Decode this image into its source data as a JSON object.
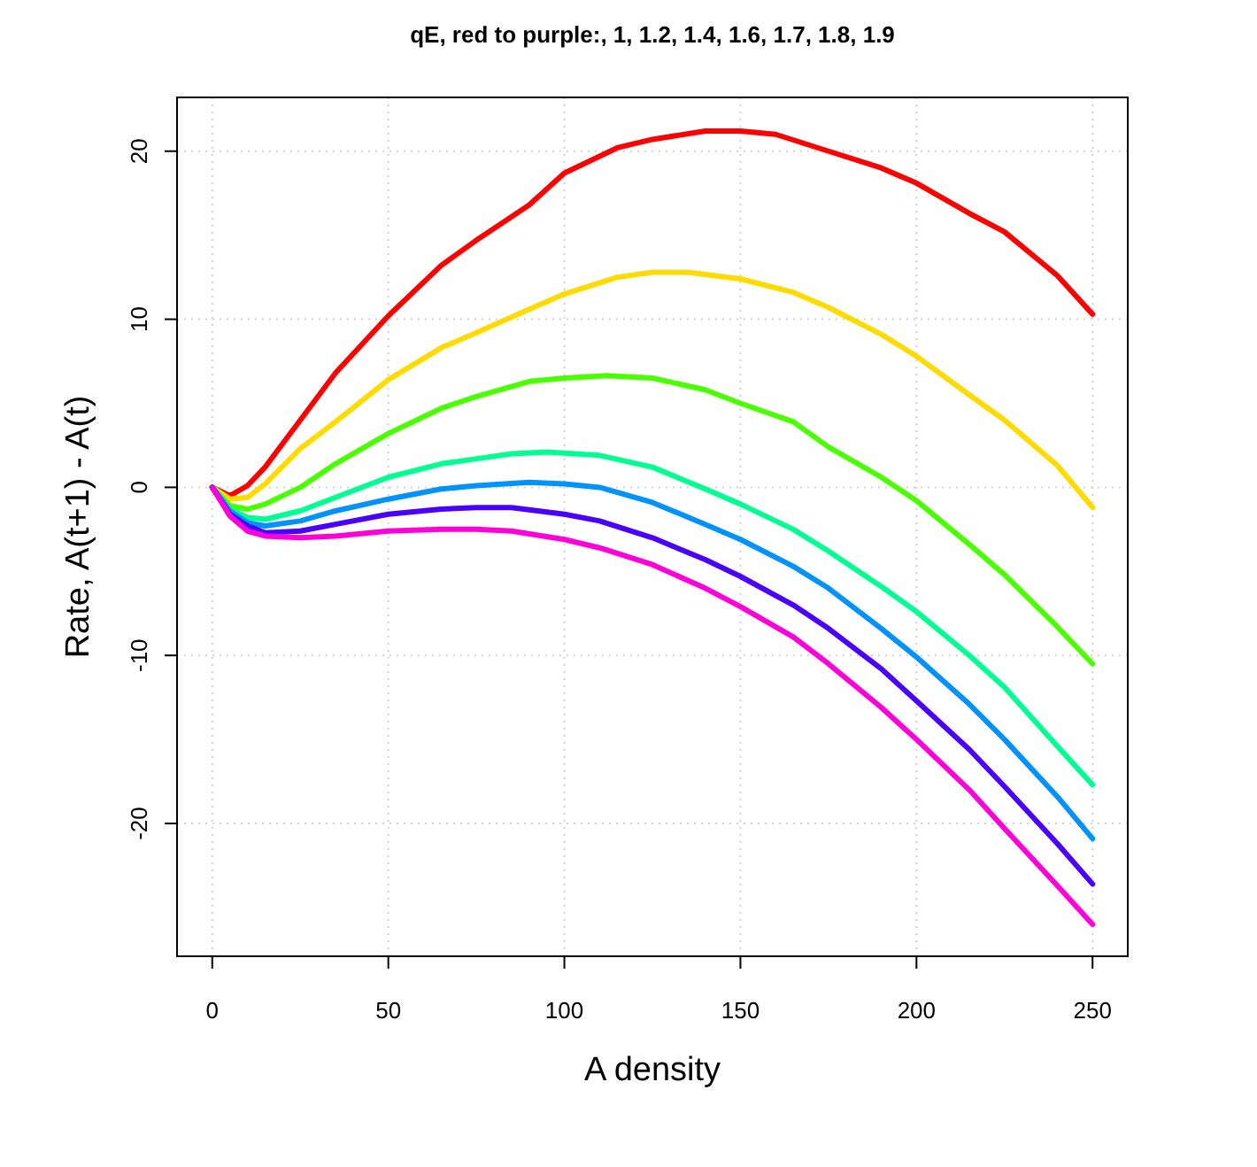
{
  "chart_data": {
    "type": "line",
    "title": "qE, red to purple:,  1,  1.2,  1.4,  1.6,  1.7,  1.8,  1.9",
    "xlabel": "A density",
    "ylabel": "Rate, A(t+1) - A(t)",
    "xlim": [
      -10,
      260
    ],
    "ylim": [
      -27.9,
      23.2
    ],
    "xticks": [
      0,
      50,
      100,
      150,
      200,
      250
    ],
    "yticks": [
      -20,
      -10,
      0,
      10,
      20
    ],
    "grid": true,
    "line_style": "solid",
    "marker": "none",
    "series": [
      {
        "color": "#ff0000",
        "x": [
          0,
          5,
          10,
          15,
          25,
          35,
          50,
          65,
          75,
          90,
          100,
          115,
          125,
          140,
          150,
          160,
          175,
          190,
          200,
          215,
          225,
          240,
          250
        ],
        "values": [
          0,
          -0.5,
          0.1,
          1.2,
          4.0,
          6.8,
          10.2,
          13.2,
          14.7,
          16.8,
          18.7,
          20.2,
          20.7,
          21.2,
          21.2,
          21.0,
          20.0,
          19.0,
          18.1,
          16.3,
          15.2,
          12.6,
          10.3
        ]
      },
      {
        "color": "#ffdb00",
        "x": [
          0,
          5,
          10,
          15,
          25,
          35,
          50,
          65,
          75,
          90,
          100,
          115,
          125,
          135,
          150,
          165,
          175,
          190,
          200,
          215,
          225,
          240,
          250
        ],
        "values": [
          0,
          -0.7,
          -0.6,
          0.2,
          2.3,
          3.9,
          6.4,
          8.3,
          9.2,
          10.6,
          11.5,
          12.5,
          12.8,
          12.8,
          12.4,
          11.6,
          10.7,
          9.1,
          7.8,
          5.5,
          4.0,
          1.3,
          -1.2
        ]
      },
      {
        "color": "#49ff00",
        "x": [
          0,
          5,
          10,
          15,
          25,
          35,
          50,
          65,
          75,
          90,
          100,
          112,
          125,
          140,
          150,
          165,
          175,
          190,
          200,
          215,
          225,
          240,
          250
        ],
        "values": [
          0,
          -1.1,
          -1.3,
          -1.0,
          0,
          1.4,
          3.2,
          4.7,
          5.4,
          6.3,
          6.5,
          6.65,
          6.5,
          5.8,
          5.0,
          3.9,
          2.4,
          0.6,
          -0.8,
          -3.4,
          -5.2,
          -8.3,
          -10.5
        ]
      },
      {
        "color": "#00ff92",
        "x": [
          0,
          5,
          10,
          15,
          25,
          35,
          50,
          65,
          75,
          85,
          95,
          110,
          125,
          140,
          150,
          165,
          175,
          190,
          200,
          215,
          225,
          240,
          250
        ],
        "values": [
          0,
          -1.3,
          -1.8,
          -1.9,
          -1.4,
          -0.6,
          0.6,
          1.4,
          1.7,
          2.0,
          2.1,
          1.9,
          1.2,
          -0.1,
          -1.0,
          -2.5,
          -3.8,
          -5.9,
          -7.4,
          -10.0,
          -11.9,
          -15.4,
          -17.7
        ]
      },
      {
        "color": "#0092ff",
        "x": [
          0,
          5,
          10,
          15,
          25,
          35,
          50,
          65,
          75,
          90,
          100,
          110,
          125,
          140,
          150,
          165,
          175,
          190,
          200,
          215,
          225,
          240,
          250
        ],
        "values": [
          0,
          -1.4,
          -2.1,
          -2.3,
          -2.0,
          -1.4,
          -0.7,
          -0.1,
          0.1,
          0.3,
          0.2,
          0,
          -0.9,
          -2.2,
          -3.1,
          -4.7,
          -6.0,
          -8.4,
          -10.1,
          -12.9,
          -15.0,
          -18.4,
          -20.9
        ]
      },
      {
        "color": "#4900ff",
        "x": [
          0,
          5,
          10,
          15,
          25,
          35,
          50,
          65,
          75,
          85,
          100,
          110,
          125,
          140,
          150,
          165,
          175,
          190,
          200,
          215,
          225,
          240,
          250
        ],
        "values": [
          0,
          -1.6,
          -2.3,
          -2.7,
          -2.6,
          -2.2,
          -1.6,
          -1.3,
          -1.2,
          -1.2,
          -1.6,
          -2.0,
          -3.0,
          -4.3,
          -5.3,
          -7.0,
          -8.4,
          -10.8,
          -12.7,
          -15.6,
          -17.8,
          -21.2,
          -23.6
        ]
      },
      {
        "color": "#ff00db",
        "x": [
          0,
          5,
          10,
          15,
          25,
          35,
          50,
          65,
          75,
          85,
          100,
          110,
          125,
          140,
          150,
          165,
          175,
          190,
          200,
          215,
          225,
          240,
          250
        ],
        "values": [
          0,
          -1.7,
          -2.6,
          -2.9,
          -3.0,
          -2.9,
          -2.6,
          -2.5,
          -2.5,
          -2.6,
          -3.1,
          -3.6,
          -4.6,
          -6.0,
          -7.1,
          -8.9,
          -10.5,
          -13.1,
          -15.0,
          -18.0,
          -20.3,
          -23.7,
          -26.0
        ]
      }
    ]
  }
}
